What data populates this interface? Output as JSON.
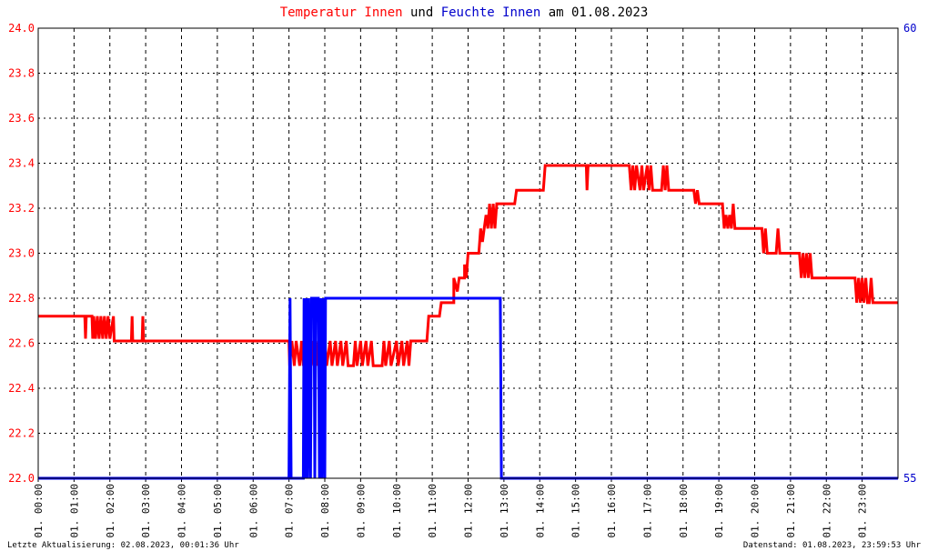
{
  "chart_data": {
    "type": "line",
    "title": {
      "parts": [
        {
          "text": "Temperatur Innen",
          "color": "#ff0000"
        },
        {
          "text": " und ",
          "color": "#000000"
        },
        {
          "text": "Feuchte Innen",
          "color": "#0000cc"
        },
        {
          "text": " am 01.08.2023",
          "color": "#000000"
        }
      ]
    },
    "left_axis": {
      "ylim": [
        22.0,
        24.0
      ],
      "ticks": [
        "22.0",
        "22.2",
        "22.4",
        "22.6",
        "22.8",
        "23.0",
        "23.2",
        "23.4",
        "23.6",
        "23.8",
        "24.0"
      ],
      "color": "#ff0000"
    },
    "right_axis": {
      "ylim": [
        55,
        60
      ],
      "ticks": [
        "55",
        "60"
      ],
      "color": "#0000cc"
    },
    "x_axis": {
      "range_hours": [
        0,
        24
      ],
      "ticks": [
        "01. 00:00",
        "01. 01:00",
        "01. 02:00",
        "01. 03:00",
        "01. 04:00",
        "01. 05:00",
        "01. 06:00",
        "01. 07:00",
        "01. 08:00",
        "01. 09:00",
        "01. 10:00",
        "01. 11:00",
        "01. 12:00",
        "01. 13:00",
        "01. 14:00",
        "01. 15:00",
        "01. 16:00",
        "01. 17:00",
        "01. 18:00",
        "01. 19:00",
        "01. 20:00",
        "01. 21:00",
        "01. 22:00",
        "01. 23:00"
      ]
    },
    "grid": true,
    "series": [
      {
        "axis": "left",
        "color": "#ff0000",
        "points": [
          [
            0.0,
            22.72
          ],
          [
            1.3,
            22.72
          ],
          [
            1.32,
            22.62
          ],
          [
            1.34,
            22.72
          ],
          [
            1.5,
            22.72
          ],
          [
            1.52,
            22.62
          ],
          [
            1.55,
            22.72
          ],
          [
            1.6,
            22.62
          ],
          [
            1.65,
            22.72
          ],
          [
            1.7,
            22.62
          ],
          [
            1.75,
            22.72
          ],
          [
            1.8,
            22.62
          ],
          [
            1.85,
            22.72
          ],
          [
            1.9,
            22.62
          ],
          [
            1.95,
            22.72
          ],
          [
            2.0,
            22.62
          ],
          [
            2.1,
            22.72
          ],
          [
            2.12,
            22.61
          ],
          [
            2.6,
            22.61
          ],
          [
            2.62,
            22.72
          ],
          [
            2.64,
            22.61
          ],
          [
            2.9,
            22.61
          ],
          [
            2.92,
            22.72
          ],
          [
            2.94,
            22.61
          ],
          [
            7.0,
            22.61
          ],
          [
            7.02,
            22.5
          ],
          [
            7.08,
            22.61
          ],
          [
            7.15,
            22.5
          ],
          [
            7.2,
            22.61
          ],
          [
            7.3,
            22.5
          ],
          [
            7.35,
            22.61
          ],
          [
            7.4,
            22.5
          ],
          [
            7.45,
            22.61
          ],
          [
            7.5,
            22.5
          ],
          [
            7.55,
            22.61
          ],
          [
            7.6,
            22.5
          ],
          [
            7.65,
            22.61
          ],
          [
            7.7,
            22.5
          ],
          [
            7.75,
            22.61
          ],
          [
            7.8,
            22.5
          ],
          [
            7.85,
            22.61
          ],
          [
            7.9,
            22.5
          ],
          [
            8.0,
            22.61
          ],
          [
            8.05,
            22.5
          ],
          [
            8.15,
            22.61
          ],
          [
            8.2,
            22.5
          ],
          [
            8.3,
            22.61
          ],
          [
            8.35,
            22.5
          ],
          [
            8.45,
            22.61
          ],
          [
            8.5,
            22.5
          ],
          [
            8.6,
            22.61
          ],
          [
            8.65,
            22.5
          ],
          [
            8.8,
            22.5
          ],
          [
            8.85,
            22.61
          ],
          [
            8.9,
            22.5
          ],
          [
            9.0,
            22.61
          ],
          [
            9.05,
            22.5
          ],
          [
            9.15,
            22.61
          ],
          [
            9.2,
            22.5
          ],
          [
            9.3,
            22.61
          ],
          [
            9.35,
            22.5
          ],
          [
            9.6,
            22.5
          ],
          [
            9.65,
            22.61
          ],
          [
            9.7,
            22.5
          ],
          [
            9.8,
            22.61
          ],
          [
            9.85,
            22.5
          ],
          [
            10.0,
            22.61
          ],
          [
            10.05,
            22.5
          ],
          [
            10.15,
            22.61
          ],
          [
            10.2,
            22.5
          ],
          [
            10.3,
            22.61
          ],
          [
            10.35,
            22.5
          ],
          [
            10.4,
            22.61
          ],
          [
            10.85,
            22.61
          ],
          [
            10.9,
            22.72
          ],
          [
            11.2,
            22.72
          ],
          [
            11.25,
            22.78
          ],
          [
            11.6,
            22.78
          ],
          [
            11.6,
            22.89
          ],
          [
            11.7,
            22.83
          ],
          [
            11.75,
            22.89
          ],
          [
            11.9,
            22.89
          ],
          [
            11.9,
            22.95
          ],
          [
            11.95,
            22.89
          ],
          [
            12.0,
            23.0
          ],
          [
            12.3,
            23.0
          ],
          [
            12.35,
            23.11
          ],
          [
            12.4,
            23.05
          ],
          [
            12.45,
            23.11
          ],
          [
            12.5,
            23.17
          ],
          [
            12.55,
            23.11
          ],
          [
            12.6,
            23.22
          ],
          [
            12.65,
            23.11
          ],
          [
            12.7,
            23.22
          ],
          [
            12.75,
            23.11
          ],
          [
            12.8,
            23.22
          ],
          [
            13.3,
            23.22
          ],
          [
            13.35,
            23.28
          ],
          [
            14.1,
            23.28
          ],
          [
            14.15,
            23.39
          ],
          [
            15.3,
            23.39
          ],
          [
            15.32,
            23.28
          ],
          [
            15.35,
            23.39
          ],
          [
            16.5,
            23.39
          ],
          [
            16.55,
            23.28
          ],
          [
            16.6,
            23.39
          ],
          [
            16.65,
            23.28
          ],
          [
            16.7,
            23.39
          ],
          [
            16.8,
            23.28
          ],
          [
            16.85,
            23.39
          ],
          [
            16.9,
            23.28
          ],
          [
            17.0,
            23.39
          ],
          [
            17.05,
            23.28
          ],
          [
            17.1,
            23.39
          ],
          [
            17.15,
            23.28
          ],
          [
            17.4,
            23.28
          ],
          [
            17.45,
            23.39
          ],
          [
            17.5,
            23.28
          ],
          [
            17.55,
            23.39
          ],
          [
            17.6,
            23.28
          ],
          [
            18.3,
            23.28
          ],
          [
            18.35,
            23.22
          ],
          [
            18.4,
            23.28
          ],
          [
            18.45,
            23.22
          ],
          [
            19.1,
            23.22
          ],
          [
            19.15,
            23.11
          ],
          [
            19.2,
            23.17
          ],
          [
            19.25,
            23.11
          ],
          [
            19.3,
            23.17
          ],
          [
            19.35,
            23.11
          ],
          [
            19.4,
            23.22
          ],
          [
            19.45,
            23.11
          ],
          [
            20.2,
            23.11
          ],
          [
            20.25,
            23.0
          ],
          [
            20.3,
            23.11
          ],
          [
            20.35,
            23.0
          ],
          [
            20.6,
            23.0
          ],
          [
            20.65,
            23.11
          ],
          [
            20.7,
            23.0
          ],
          [
            21.25,
            23.0
          ],
          [
            21.3,
            22.89
          ],
          [
            21.35,
            23.0
          ],
          [
            21.4,
            22.89
          ],
          [
            21.45,
            23.0
          ],
          [
            21.5,
            22.89
          ],
          [
            21.55,
            23.0
          ],
          [
            21.6,
            22.89
          ],
          [
            22.8,
            22.89
          ],
          [
            22.85,
            22.78
          ],
          [
            22.9,
            22.89
          ],
          [
            22.95,
            22.78
          ],
          [
            23.0,
            22.89
          ],
          [
            23.05,
            22.78
          ],
          [
            23.1,
            22.89
          ],
          [
            23.15,
            22.78
          ],
          [
            23.2,
            22.78
          ],
          [
            23.25,
            22.89
          ],
          [
            23.3,
            22.78
          ],
          [
            24.0,
            22.78
          ]
        ]
      },
      {
        "axis": "right",
        "color": "#0000ff",
        "points": [
          [
            0.0,
            55
          ],
          [
            7.0,
            55
          ],
          [
            7.03,
            57
          ],
          [
            7.06,
            55
          ],
          [
            7.4,
            55
          ],
          [
            7.42,
            57
          ],
          [
            7.45,
            55
          ],
          [
            7.48,
            57
          ],
          [
            7.52,
            55
          ],
          [
            7.55,
            57
          ],
          [
            7.6,
            55
          ],
          [
            7.63,
            57
          ],
          [
            7.7,
            57
          ],
          [
            7.72,
            55
          ],
          [
            7.75,
            57
          ],
          [
            7.82,
            57
          ],
          [
            7.85,
            55
          ],
          [
            7.88,
            57
          ],
          [
            7.92,
            55
          ],
          [
            7.95,
            57
          ],
          [
            8.0,
            55
          ],
          [
            8.02,
            57
          ],
          [
            12.9,
            57
          ],
          [
            12.93,
            55
          ],
          [
            24.0,
            55
          ]
        ]
      }
    ]
  },
  "footer": {
    "left": "Letzte Aktualisierung: 02.08.2023, 00:01:36 Uhr",
    "right": "Datenstand: 01.08.2023, 23:59:53 Uhr"
  }
}
